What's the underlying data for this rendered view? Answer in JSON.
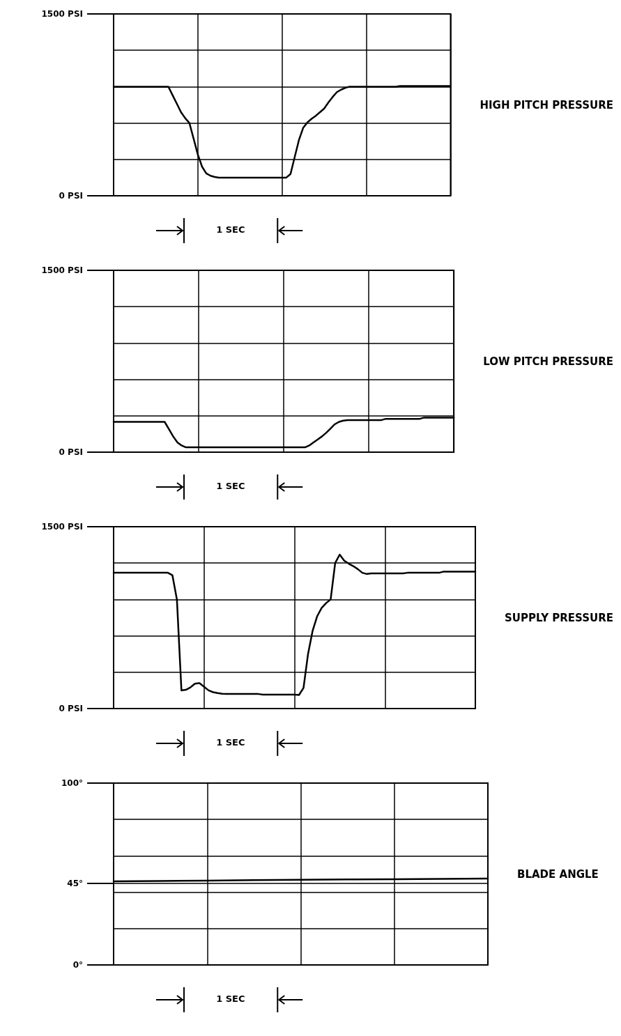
{
  "chart_data": [
    {
      "type": "line",
      "ylabel": "HIGH PITCH PRESSURE",
      "annotations": [
        "1 SEC"
      ],
      "grid": true,
      "tick_labels": "y",
      "categories": [
        null,
        null,
        null,
        null,
        null,
        null,
        null,
        null,
        null,
        null,
        null,
        null,
        null,
        null,
        null,
        null,
        null,
        null,
        null,
        null,
        null,
        null,
        null,
        null,
        null,
        null,
        null,
        null,
        null,
        null,
        null,
        null,
        null,
        null,
        null,
        null,
        null,
        null,
        null,
        null,
        null,
        null,
        null,
        null,
        null,
        null,
        null,
        null,
        null,
        null,
        null,
        null,
        null,
        null,
        null,
        null,
        null,
        null,
        null,
        null,
        null,
        null,
        null,
        null,
        null,
        null,
        null,
        null,
        null,
        null,
        null,
        null,
        null,
        null,
        null,
        null,
        null,
        null,
        null,
        null,
        null
      ],
      "ylim": [
        0,
        1500
      ],
      "yticks": [
        {
          "value": 0,
          "label": "0 PSI"
        },
        {
          "value": 300,
          "label": null
        },
        {
          "value": 600,
          "label": null
        },
        {
          "value": 900,
          "label": null
        },
        {
          "value": 1200,
          "label": null
        },
        {
          "value": 1500,
          "label": "1500 PSI"
        }
      ],
      "series": [
        {
          "color": "#000000",
          "values": [
            900,
            900,
            900,
            900,
            900,
            900,
            900,
            900,
            900,
            900,
            900,
            900,
            900,
            900,
            830,
            760,
            690,
            640,
            600,
            470,
            340,
            240,
            185,
            165,
            155,
            150,
            150,
            150,
            150,
            150,
            150,
            150,
            150,
            150,
            150,
            150,
            150,
            150,
            150,
            150,
            150,
            150,
            180,
            320,
            460,
            560,
            605,
            635,
            660,
            690,
            720,
            770,
            815,
            855,
            875,
            890,
            900,
            900,
            900,
            900,
            900,
            900,
            900,
            900,
            900,
            900,
            900,
            900,
            905,
            905,
            905,
            905,
            905,
            905,
            905,
            905,
            905,
            905,
            905,
            905,
            905
          ]
        }
      ]
    },
    {
      "type": "line",
      "ylabel": "LOW PITCH PRESSURE",
      "annotations": [
        "1 SEC"
      ],
      "grid": true,
      "tick_labels": "y",
      "categories": [
        null,
        null,
        null,
        null,
        null,
        null,
        null,
        null,
        null,
        null,
        null,
        null,
        null,
        null,
        null,
        null,
        null,
        null,
        null,
        null,
        null,
        null,
        null,
        null,
        null,
        null,
        null,
        null,
        null,
        null,
        null,
        null,
        null,
        null,
        null,
        null,
        null,
        null,
        null,
        null,
        null,
        null,
        null,
        null,
        null,
        null,
        null,
        null,
        null,
        null,
        null,
        null,
        null,
        null,
        null,
        null,
        null,
        null,
        null,
        null,
        null,
        null,
        null,
        null,
        null,
        null,
        null,
        null,
        null,
        null,
        null,
        null,
        null,
        null,
        null,
        null,
        null,
        null,
        null,
        null,
        null
      ],
      "ylim": [
        0,
        1500
      ],
      "yticks": [
        {
          "value": 0,
          "label": "0 PSI"
        },
        {
          "value": 300,
          "label": null
        },
        {
          "value": 600,
          "label": null
        },
        {
          "value": 900,
          "label": null
        },
        {
          "value": 1200,
          "label": null
        },
        {
          "value": 1500,
          "label": "1500 PSI"
        }
      ],
      "series": [
        {
          "color": "#000000",
          "values": [
            250,
            250,
            250,
            250,
            250,
            250,
            250,
            250,
            250,
            250,
            250,
            250,
            250,
            190,
            130,
            80,
            55,
            40,
            40,
            40,
            40,
            40,
            40,
            40,
            40,
            40,
            40,
            40,
            40,
            40,
            40,
            40,
            40,
            40,
            40,
            40,
            40,
            40,
            40,
            40,
            40,
            40,
            40,
            40,
            40,
            40,
            55,
            80,
            105,
            130,
            160,
            195,
            230,
            250,
            260,
            265,
            265,
            265,
            265,
            265,
            265,
            265,
            265,
            265,
            275,
            275,
            275,
            275,
            275,
            275,
            275,
            275,
            275,
            285,
            285,
            285,
            285,
            285,
            285,
            285,
            285
          ]
        }
      ]
    },
    {
      "type": "line",
      "ylabel": "SUPPLY PRESSURE",
      "annotations": [
        "1 SEC"
      ],
      "grid": true,
      "tick_labels": "y",
      "categories": [
        null,
        null,
        null,
        null,
        null,
        null,
        null,
        null,
        null,
        null,
        null,
        null,
        null,
        null,
        null,
        null,
        null,
        null,
        null,
        null,
        null,
        null,
        null,
        null,
        null,
        null,
        null,
        null,
        null,
        null,
        null,
        null,
        null,
        null,
        null,
        null,
        null,
        null,
        null,
        null,
        null,
        null,
        null,
        null,
        null,
        null,
        null,
        null,
        null,
        null,
        null,
        null,
        null,
        null,
        null,
        null,
        null,
        null,
        null,
        null,
        null,
        null,
        null,
        null,
        null,
        null,
        null,
        null,
        null,
        null,
        null,
        null,
        null,
        null,
        null,
        null,
        null,
        null,
        null,
        null,
        null
      ],
      "ylim": [
        0,
        1500
      ],
      "yticks": [
        {
          "value": 0,
          "label": "0 PSI"
        },
        {
          "value": 300,
          "label": null
        },
        {
          "value": 600,
          "label": null
        },
        {
          "value": 900,
          "label": null
        },
        {
          "value": 1200,
          "label": null
        },
        {
          "value": 1500,
          "label": "1500 PSI"
        }
      ],
      "series": [
        {
          "color": "#000000",
          "values": [
            1120,
            1120,
            1120,
            1120,
            1120,
            1120,
            1120,
            1120,
            1120,
            1120,
            1120,
            1120,
            1120,
            1100,
            900,
            150,
            155,
            175,
            205,
            210,
            180,
            150,
            135,
            128,
            122,
            120,
            120,
            120,
            120,
            120,
            120,
            120,
            120,
            115,
            115,
            115,
            115,
            115,
            115,
            115,
            115,
            112,
            170,
            450,
            640,
            760,
            830,
            870,
            900,
            1200,
            1270,
            1220,
            1195,
            1175,
            1150,
            1120,
            1110,
            1115,
            1115,
            1115,
            1115,
            1115,
            1115,
            1115,
            1115,
            1120,
            1120,
            1120,
            1120,
            1120,
            1120,
            1120,
            1120,
            1130,
            1130,
            1130,
            1130,
            1130,
            1130,
            1130,
            1130
          ]
        }
      ]
    },
    {
      "type": "line",
      "ylabel": "BLADE ANGLE",
      "annotations": [
        "1 SEC"
      ],
      "grid": true,
      "tick_labels": "y",
      "categories": [
        null,
        null,
        null,
        null,
        null,
        null,
        null,
        null,
        null
      ],
      "ylim": [
        0,
        100
      ],
      "yticks": [
        {
          "value": 0,
          "label": "0°"
        },
        {
          "value": 20,
          "label": null
        },
        {
          "value": 40,
          "label": null
        },
        {
          "value": 45,
          "label": "45°"
        },
        {
          "value": 60,
          "label": null
        },
        {
          "value": 80,
          "label": null
        },
        {
          "value": 100,
          "label": "100°"
        }
      ],
      "series": [
        {
          "color": "#000000",
          "values": [
            46,
            46.2,
            46.4,
            46.6,
            46.8,
            47,
            47.1,
            47.3,
            47.5
          ]
        }
      ]
    }
  ]
}
